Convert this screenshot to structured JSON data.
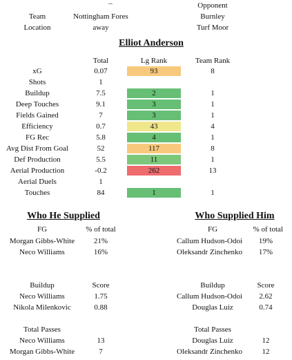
{
  "header": {
    "top_partial": [
      "",
      "_",
      "Opponent"
    ],
    "rows": [
      {
        "label": "Team",
        "values": [
          "Nottingham Forest",
          "Burnley"
        ]
      },
      {
        "label": "Location",
        "values": [
          "away",
          "Turf Moor"
        ]
      }
    ]
  },
  "player": {
    "name": "Elliot Anderson"
  },
  "stats": {
    "columns": [
      "Total",
      "Lg Rank",
      "Team Rank"
    ],
    "rows": [
      {
        "label": "xG",
        "total": "0.07",
        "lg_rank": "93",
        "team_rank": "8",
        "color": "#f8c97d"
      },
      {
        "label": "Shots",
        "total": "1",
        "lg_rank": "",
        "team_rank": "",
        "color": ""
      },
      {
        "label": "Buildup",
        "total": "7.5",
        "lg_rank": "2",
        "team_rank": "1",
        "color": "#66bf75"
      },
      {
        "label": "Deep Touches",
        "total": "9.1",
        "lg_rank": "3",
        "team_rank": "1",
        "color": "#66bf75"
      },
      {
        "label": "Fields Gained",
        "total": "7",
        "lg_rank": "3",
        "team_rank": "1",
        "color": "#66bf75"
      },
      {
        "label": "Efficiency",
        "total": "0.7",
        "lg_rank": "43",
        "team_rank": "4",
        "color": "#f0e68c"
      },
      {
        "label": "FG Rec",
        "total": "5.8",
        "lg_rank": "4",
        "team_rank": "1",
        "color": "#66bf75"
      },
      {
        "label": "Avg Dist From Goal",
        "total": "52",
        "lg_rank": "117",
        "team_rank": "8",
        "color": "#f8c97d"
      },
      {
        "label": "Def Production",
        "total": "5.5",
        "lg_rank": "11",
        "team_rank": "1",
        "color": "#7dc77b"
      },
      {
        "label": "Aerial Production",
        "total": "-0.2",
        "lg_rank": "262",
        "team_rank": "13",
        "color": "#ee6b6e"
      },
      {
        "label": "Aerial Duels",
        "total": "1",
        "lg_rank": "",
        "team_rank": "",
        "color": ""
      },
      {
        "label": "Touches",
        "total": "84",
        "lg_rank": "1",
        "team_rank": "1",
        "color": "#66bf75"
      }
    ]
  },
  "supplied": {
    "title": "Who He Supplied",
    "fg": {
      "col1": "FG",
      "col2": "% of total",
      "rows": [
        {
          "name": "Morgan Gibbs-White",
          "value": "21%"
        },
        {
          "name": "Neco Williams",
          "value": "16%"
        }
      ]
    },
    "buildup": {
      "col1": "Buildup",
      "col2": "Score",
      "rows": [
        {
          "name": "Neco Williams",
          "value": "1.75"
        },
        {
          "name": "Nikola Milenkovic",
          "value": "0.88"
        }
      ]
    },
    "passes": {
      "col1": "Total Passes",
      "col2": "",
      "rows": [
        {
          "name": "Neco Williams",
          "value": "13"
        },
        {
          "name": "Morgan Gibbs-White",
          "value": "7"
        }
      ]
    }
  },
  "supplied_him": {
    "title": "Who Supplied Him",
    "fg": {
      "col1": "FG",
      "col2": "% of total",
      "rows": [
        {
          "name": "Callum Hudson-Odoi",
          "value": "19%"
        },
        {
          "name": "Oleksandr Zinchenko",
          "value": "17%"
        }
      ]
    },
    "buildup": {
      "col1": "Buildup",
      "col2": "Score",
      "rows": [
        {
          "name": "Callum Hudson-Odoi",
          "value": "2.62"
        },
        {
          "name": "Douglas Luiz",
          "value": "0.74"
        }
      ]
    },
    "passes": {
      "col1": "Total Passes",
      "col2": "",
      "rows": [
        {
          "name": "Douglas Luiz",
          "value": "12"
        },
        {
          "name": "Oleksandr Zinchenko",
          "value": "12"
        }
      ]
    }
  }
}
